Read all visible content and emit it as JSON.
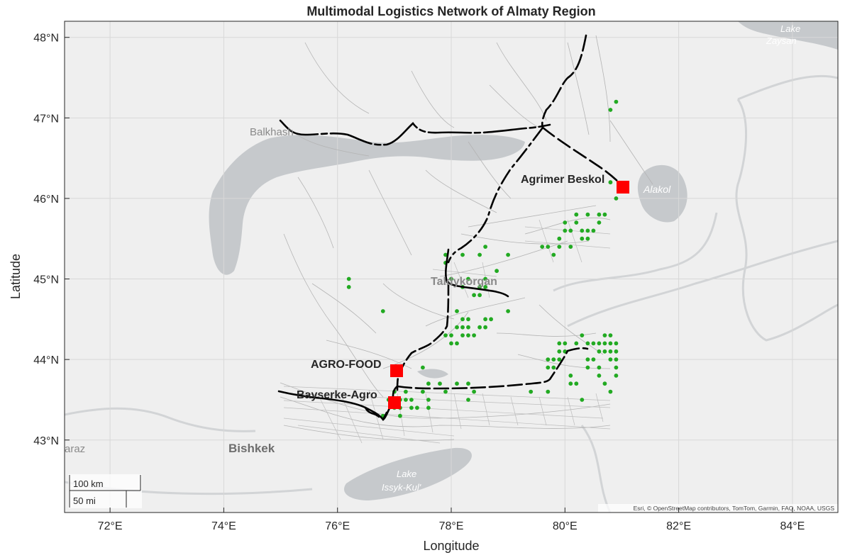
{
  "title": "Multimodal Logistics Network of Almaty Region",
  "xlabel": "Longitude",
  "ylabel": "Latitude",
  "x_ticks": [
    "72°E",
    "74°E",
    "76°E",
    "78°E",
    "80°E",
    "82°E",
    "84°E"
  ],
  "y_ticks": [
    "48°N",
    "47°N",
    "46°N",
    "45°N",
    "44°N",
    "43°N"
  ],
  "basemap_labels": {
    "lake_zaysan": "Lake Zaysan",
    "balkhash": "Balkhash",
    "alakol": "Alakol",
    "taldykorgan": "Taldykorgan",
    "bishkek": "Bishkek",
    "taraz": "araz",
    "issyk_kul": "Lake Issyk-Kul'"
  },
  "hubs": {
    "agrimer": "Agrimer Beskol",
    "agrofood": "AGRO-FOOD",
    "bayserke": "Bayserke-Agro"
  },
  "scalebar": {
    "km": "100 km",
    "mi": "50 mi"
  },
  "attribution": "Esri, © OpenStreetMap contributors, TomTom, Garmin, FAO, NOAA, USGS",
  "colors": {
    "hub": "#ff0000",
    "farm": "#22aa22",
    "route": "#000000",
    "road": "#b4b4b4",
    "water": "#c6c9cc",
    "land": "#efefef"
  },
  "chart_data": {
    "type": "map",
    "xlim": [
      71.2,
      84.8
    ],
    "ylim": [
      42.1,
      48.2
    ],
    "hubs": [
      {
        "name": "Agrimer Beskol",
        "lon": 81.1,
        "lat": 46.17
      },
      {
        "name": "AGRO-FOOD",
        "lon": 77.08,
        "lat": 43.87
      },
      {
        "name": "Bayserke-Agro",
        "lon": 77.05,
        "lat": 43.47
      }
    ],
    "farms": [
      [
        80.9,
        47.2
      ],
      [
        80.8,
        47.1
      ],
      [
        80.8,
        46.2
      ],
      [
        80.9,
        46.0
      ],
      [
        80.2,
        45.8
      ],
      [
        80.4,
        45.8
      ],
      [
        80.6,
        45.8
      ],
      [
        80.7,
        45.8
      ],
      [
        80.0,
        45.7
      ],
      [
        80.2,
        45.7
      ],
      [
        80.6,
        45.7
      ],
      [
        80.0,
        45.6
      ],
      [
        80.1,
        45.6
      ],
      [
        80.3,
        45.6
      ],
      [
        80.4,
        45.6
      ],
      [
        80.5,
        45.6
      ],
      [
        80.3,
        45.5
      ],
      [
        80.4,
        45.5
      ],
      [
        79.9,
        45.5
      ],
      [
        79.6,
        45.4
      ],
      [
        79.7,
        45.4
      ],
      [
        79.9,
        45.4
      ],
      [
        80.1,
        45.4
      ],
      [
        79.8,
        45.3
      ],
      [
        79.0,
        45.3
      ],
      [
        78.6,
        45.4
      ],
      [
        78.5,
        45.3
      ],
      [
        77.9,
        45.3
      ],
      [
        77.9,
        45.2
      ],
      [
        78.2,
        45.3
      ],
      [
        78.8,
        45.1
      ],
      [
        78.6,
        45.0
      ],
      [
        78.0,
        45.0
      ],
      [
        78.3,
        45.0
      ],
      [
        78.2,
        44.9
      ],
      [
        78.5,
        44.9
      ],
      [
        78.6,
        44.9
      ],
      [
        78.4,
        44.8
      ],
      [
        78.5,
        44.8
      ],
      [
        76.2,
        45.0
      ],
      [
        76.2,
        44.9
      ],
      [
        76.8,
        44.6
      ],
      [
        78.1,
        44.6
      ],
      [
        79.0,
        44.6
      ],
      [
        78.2,
        44.5
      ],
      [
        78.3,
        44.5
      ],
      [
        78.6,
        44.5
      ],
      [
        78.7,
        44.5
      ],
      [
        78.1,
        44.4
      ],
      [
        78.2,
        44.4
      ],
      [
        78.3,
        44.4
      ],
      [
        78.5,
        44.4
      ],
      [
        78.6,
        44.4
      ],
      [
        77.9,
        44.3
      ],
      [
        78.0,
        44.3
      ],
      [
        78.2,
        44.3
      ],
      [
        78.3,
        44.3
      ],
      [
        78.4,
        44.3
      ],
      [
        78.0,
        44.2
      ],
      [
        78.1,
        44.2
      ],
      [
        80.3,
        44.3
      ],
      [
        80.4,
        44.2
      ],
      [
        80.7,
        44.3
      ],
      [
        80.8,
        44.3
      ],
      [
        80.8,
        44.2
      ],
      [
        80.9,
        44.2
      ],
      [
        79.9,
        44.2
      ],
      [
        80.0,
        44.2
      ],
      [
        80.2,
        44.2
      ],
      [
        80.5,
        44.2
      ],
      [
        80.6,
        44.2
      ],
      [
        80.7,
        44.2
      ],
      [
        79.9,
        44.1
      ],
      [
        80.0,
        44.1
      ],
      [
        80.6,
        44.1
      ],
      [
        80.7,
        44.1
      ],
      [
        80.8,
        44.1
      ],
      [
        80.9,
        44.1
      ],
      [
        79.7,
        44.0
      ],
      [
        79.8,
        44.0
      ],
      [
        79.9,
        44.0
      ],
      [
        80.4,
        44.0
      ],
      [
        80.5,
        44.0
      ],
      [
        80.8,
        44.0
      ],
      [
        80.9,
        44.0
      ],
      [
        79.7,
        43.9
      ],
      [
        79.8,
        43.9
      ],
      [
        80.1,
        43.8
      ],
      [
        80.4,
        43.9
      ],
      [
        80.6,
        43.9
      ],
      [
        80.9,
        43.9
      ],
      [
        80.6,
        43.8
      ],
      [
        80.9,
        43.8
      ],
      [
        80.1,
        43.7
      ],
      [
        80.2,
        43.7
      ],
      [
        80.7,
        43.7
      ],
      [
        80.8,
        43.6
      ],
      [
        79.4,
        43.6
      ],
      [
        79.7,
        43.6
      ],
      [
        80.3,
        43.5
      ],
      [
        77.5,
        43.9
      ],
      [
        77.6,
        43.7
      ],
      [
        77.8,
        43.7
      ],
      [
        78.1,
        43.7
      ],
      [
        78.3,
        43.7
      ],
      [
        78.4,
        43.6
      ],
      [
        78.3,
        43.5
      ],
      [
        77.9,
        43.6
      ],
      [
        77.0,
        43.6
      ],
      [
        77.2,
        43.6
      ],
      [
        77.5,
        43.6
      ],
      [
        77.6,
        43.5
      ],
      [
        77.3,
        43.5
      ],
      [
        77.2,
        43.5
      ],
      [
        77.1,
        43.5
      ],
      [
        76.9,
        43.5
      ],
      [
        77.0,
        43.4
      ],
      [
        77.1,
        43.4
      ],
      [
        77.3,
        43.4
      ],
      [
        77.4,
        43.4
      ],
      [
        77.6,
        43.4
      ],
      [
        76.8,
        43.3
      ],
      [
        77.1,
        43.3
      ]
    ]
  }
}
